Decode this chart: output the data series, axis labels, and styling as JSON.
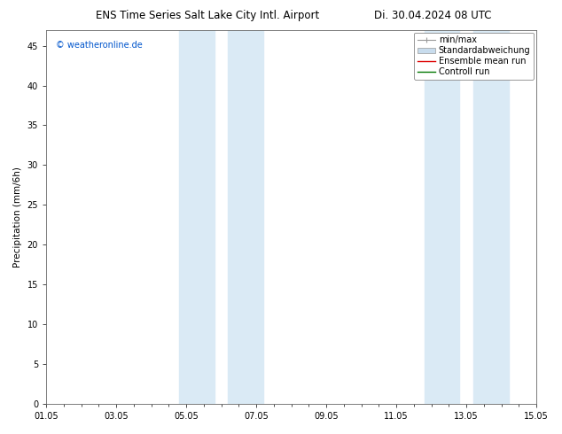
{
  "title_left": "ENS Time Series Salt Lake City Intl. Airport",
  "title_right": "Di. 30.04.2024 08 UTC",
  "ylabel": "Precipitation (mm/6h)",
  "watermark": "© weatheronline.de",
  "watermark_color": "#0055cc",
  "xmin": 0,
  "xmax": 14,
  "ymin": 0,
  "ymax": 47,
  "yticks": [
    0,
    5,
    10,
    15,
    20,
    25,
    30,
    35,
    40,
    45
  ],
  "xtick_labels": [
    "01.05",
    "03.05",
    "05.05",
    "07.05",
    "09.05",
    "11.05",
    "13.05",
    "15.05"
  ],
  "xtick_positions": [
    0,
    2,
    4,
    6,
    8,
    10,
    12,
    14
  ],
  "shade_regions": [
    {
      "xstart": 3.8,
      "xend": 4.8
    },
    {
      "xstart": 5.2,
      "xend": 6.2
    },
    {
      "xstart": 10.8,
      "xend": 11.8
    },
    {
      "xstart": 12.2,
      "xend": 13.2
    }
  ],
  "shade_color": "#daeaf5",
  "background_color": "#ffffff",
  "plot_bg_color": "#ffffff",
  "legend_entries": [
    {
      "label": "min/max",
      "color": "#aaaaaa",
      "type": "minmax"
    },
    {
      "label": "Standardabweichung",
      "color": "#c8dced",
      "type": "fill"
    },
    {
      "label": "Ensemble mean run",
      "color": "#dd0000",
      "type": "line"
    },
    {
      "label": "Controll run",
      "color": "#007700",
      "type": "line"
    }
  ],
  "border_color": "#666666",
  "tick_color": "#000000",
  "title_fontsize": 8.5,
  "label_fontsize": 7.5,
  "tick_fontsize": 7,
  "watermark_fontsize": 7,
  "legend_fontsize": 7
}
